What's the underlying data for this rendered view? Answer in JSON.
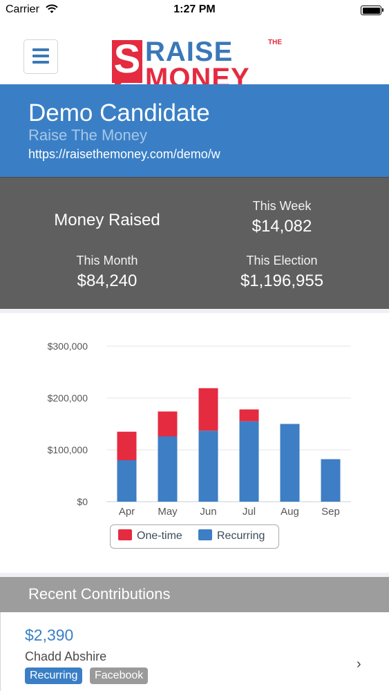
{
  "status_bar": {
    "carrier": "Carrier",
    "time": "1:27 PM"
  },
  "header": {
    "logo": {
      "mark": "S",
      "line1": "RAISE",
      "line2": "MONEY",
      "the": "THE"
    }
  },
  "candidate": {
    "name": "Demo Candidate",
    "organization": "Raise The Money",
    "url": "https://raisethemoney.com/demo/w"
  },
  "stats": {
    "heading": "Money Raised",
    "this_week": {
      "label": "This Week",
      "value": "$14,082"
    },
    "this_month": {
      "label": "This Month",
      "value": "$84,240"
    },
    "this_election": {
      "label": "This Election",
      "value": "$1,196,955"
    }
  },
  "colors": {
    "brand_blue": "#3a7fc6",
    "brand_red": "#e42b40",
    "stats_bg": "#5f5f5f"
  },
  "chart_data": {
    "type": "bar",
    "stacked": true,
    "categories": [
      "Apr",
      "May",
      "Jun",
      "Jul",
      "Aug",
      "Sep"
    ],
    "series": [
      {
        "name": "Recurring",
        "color": "#3d7ec4",
        "values": [
          80000,
          126000,
          137000,
          155000,
          150000,
          82000
        ]
      },
      {
        "name": "One-time",
        "color": "#e42b40",
        "values": [
          55000,
          48000,
          82000,
          23000,
          0,
          0
        ]
      }
    ],
    "y_ticks": [
      "$0",
      "$100,000",
      "$200,000",
      "$300,000"
    ],
    "ylim": [
      0,
      300000
    ],
    "grid": true,
    "legend": "bottom-center"
  },
  "contributions": {
    "title": "Recent Contributions",
    "items": [
      {
        "amount": "$2,390",
        "name": "Chadd Abshire",
        "tags": [
          "Recurring",
          "Facebook"
        ]
      }
    ]
  }
}
